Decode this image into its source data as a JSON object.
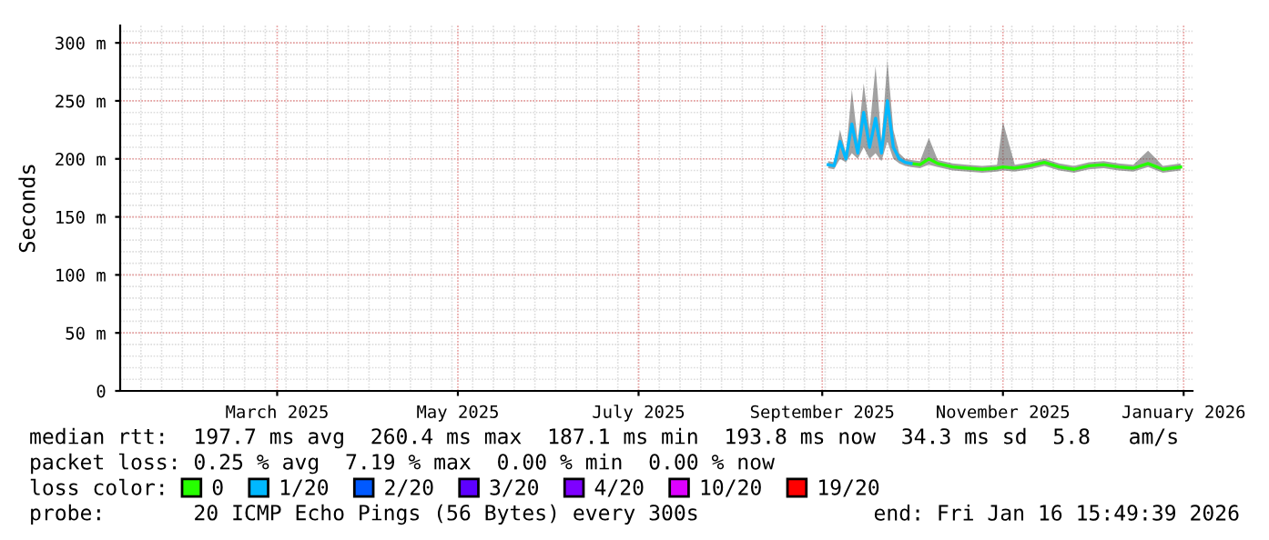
{
  "chart_data": {
    "type": "line",
    "ylabel": "Seconds",
    "legend_title": "loss color:",
    "xlim": [
      "2025-01-07",
      "2026-01-04"
    ],
    "xticks": [
      {
        "value": "2025-03-01",
        "label": "March 2025"
      },
      {
        "value": "2025-05-01",
        "label": "May 2025"
      },
      {
        "value": "2025-07-01",
        "label": "July 2025"
      },
      {
        "value": "2025-09-01",
        "label": "September 2025"
      },
      {
        "value": "2025-11-01",
        "label": "November 2025"
      },
      {
        "value": "2026-01-01",
        "label": "January 2026"
      }
    ],
    "ylim": [
      0,
      315
    ],
    "yticks": [
      0,
      {
        "value": 50,
        "label": "50 m"
      },
      {
        "value": 100,
        "label": "100 m"
      },
      {
        "value": 150,
        "label": "150 m"
      },
      {
        "value": 200,
        "label": "200 m"
      },
      {
        "value": 250,
        "label": "250 m"
      },
      {
        "value": 300,
        "label": "300 m"
      }
    ],
    "grid": true,
    "legend": "bottom",
    "line_style": "solid",
    "marker": "none",
    "x": [
      "2025-09-03",
      "2025-09-05",
      "2025-09-07",
      "2025-09-09",
      "2025-09-11",
      "2025-09-13",
      "2025-09-15",
      "2025-09-17",
      "2025-09-19",
      "2025-09-21",
      "2025-09-23",
      "2025-09-25",
      "2025-09-27",
      "2025-09-29",
      "2025-10-01",
      "2025-10-04",
      "2025-10-07",
      "2025-10-10",
      "2025-10-15",
      "2025-10-20",
      "2025-10-25",
      "2025-10-30",
      "2025-11-01",
      "2025-11-05",
      "2025-11-10",
      "2025-11-15",
      "2025-11-20",
      "2025-11-25",
      "2025-11-30",
      "2025-12-05",
      "2025-12-10",
      "2025-12-15",
      "2025-12-20",
      "2025-12-25",
      "2025-12-31"
    ],
    "series": [
      {
        "name": "0",
        "color": "#26ff00",
        "values": [
          null,
          null,
          null,
          null,
          null,
          null,
          null,
          null,
          null,
          null,
          null,
          null,
          null,
          null,
          196,
          195,
          200,
          196,
          193,
          192,
          191,
          192,
          193,
          192,
          194,
          197,
          193,
          191,
          194,
          195,
          193,
          192,
          196,
          191,
          193
        ],
        "lower": [
          192,
          191,
          200,
          197,
          205,
          200,
          210,
          200,
          205,
          198,
          215,
          200,
          196,
          194,
          193,
          192,
          195,
          193,
          190,
          189,
          188,
          189,
          190,
          189,
          191,
          194,
          190,
          188,
          191,
          192,
          190,
          189,
          193,
          188,
          190
        ],
        "upper": [
          198,
          197,
          225,
          205,
          260,
          215,
          265,
          225,
          280,
          215,
          285,
          225,
          205,
          200,
          199,
          198,
          218,
          199,
          196,
          195,
          194,
          195,
          232,
          195,
          197,
          200,
          196,
          194,
          197,
          198,
          196,
          195,
          207,
          194,
          196
        ]
      },
      {
        "name": "1/20",
        "color": "#00b8ff",
        "x": [
          "2025-09-03",
          "2025-09-05",
          "2025-09-07",
          "2025-09-09",
          "2025-09-11",
          "2025-09-13",
          "2025-09-15",
          "2025-09-17",
          "2025-09-19",
          "2025-09-21",
          "2025-09-23",
          "2025-09-25",
          "2025-09-27",
          "2025-09-29",
          "2025-10-01"
        ],
        "values": [
          195,
          194,
          215,
          200,
          230,
          205,
          240,
          210,
          235,
          205,
          250,
          210,
          200,
          197,
          196
        ]
      },
      {
        "name": "2/20",
        "color": "#0059ff",
        "values": [
          null,
          null,
          null,
          null,
          null,
          null,
          null,
          null,
          null,
          null,
          null,
          null,
          null,
          null,
          null,
          null,
          null,
          null,
          null,
          null,
          null,
          null,
          null,
          null,
          null,
          null,
          null,
          null,
          null,
          null,
          null,
          null,
          null,
          null,
          null
        ]
      },
      {
        "name": "3/20",
        "color": "#5e00ff",
        "values": [
          null,
          null,
          null,
          null,
          null,
          null,
          null,
          null,
          null,
          null,
          null,
          null,
          null,
          null,
          null,
          null,
          null,
          null,
          null,
          null,
          null,
          null,
          null,
          null,
          null,
          null,
          null,
          null,
          null,
          null,
          null,
          null,
          null,
          null,
          null
        ]
      },
      {
        "name": "4/20",
        "color": "#7e00ff",
        "values": [
          null,
          null,
          null,
          null,
          null,
          null,
          null,
          null,
          null,
          null,
          null,
          null,
          null,
          null,
          null,
          null,
          null,
          null,
          null,
          null,
          null,
          null,
          null,
          null,
          null,
          null,
          null,
          null,
          null,
          null,
          null,
          null,
          null,
          null,
          null
        ]
      },
      {
        "name": "10/20",
        "color": "#dd00ff",
        "values": [
          null,
          null,
          null,
          null,
          null,
          null,
          null,
          null,
          null,
          null,
          null,
          null,
          null,
          null,
          null,
          null,
          null,
          null,
          null,
          null,
          null,
          null,
          null,
          null,
          null,
          null,
          null,
          null,
          null,
          null,
          null,
          null,
          null,
          null,
          null
        ]
      },
      {
        "name": "19/20",
        "color": "#ff0000",
        "values": [
          null,
          null,
          null,
          null,
          null,
          null,
          null,
          null,
          null,
          null,
          null,
          null,
          null,
          null,
          null,
          null,
          null,
          null,
          null,
          null,
          null,
          null,
          null,
          null,
          null,
          null,
          null,
          null,
          null,
          null,
          null,
          null,
          null,
          null,
          null
        ]
      }
    ],
    "annotations": [
      "median rtt:  197.7 ms avg  260.4 ms max  187.1 ms min  193.8 ms now  34.3 ms sd  5.8   am/s",
      "packet loss: 0.25 % avg  7.19 % max  0.00 % min  0.00 % now",
      "probe:       20 ICMP Echo Pings (56 Bytes) every 300s",
      "end: Fri Jan 16 15:49:39 2026"
    ]
  }
}
